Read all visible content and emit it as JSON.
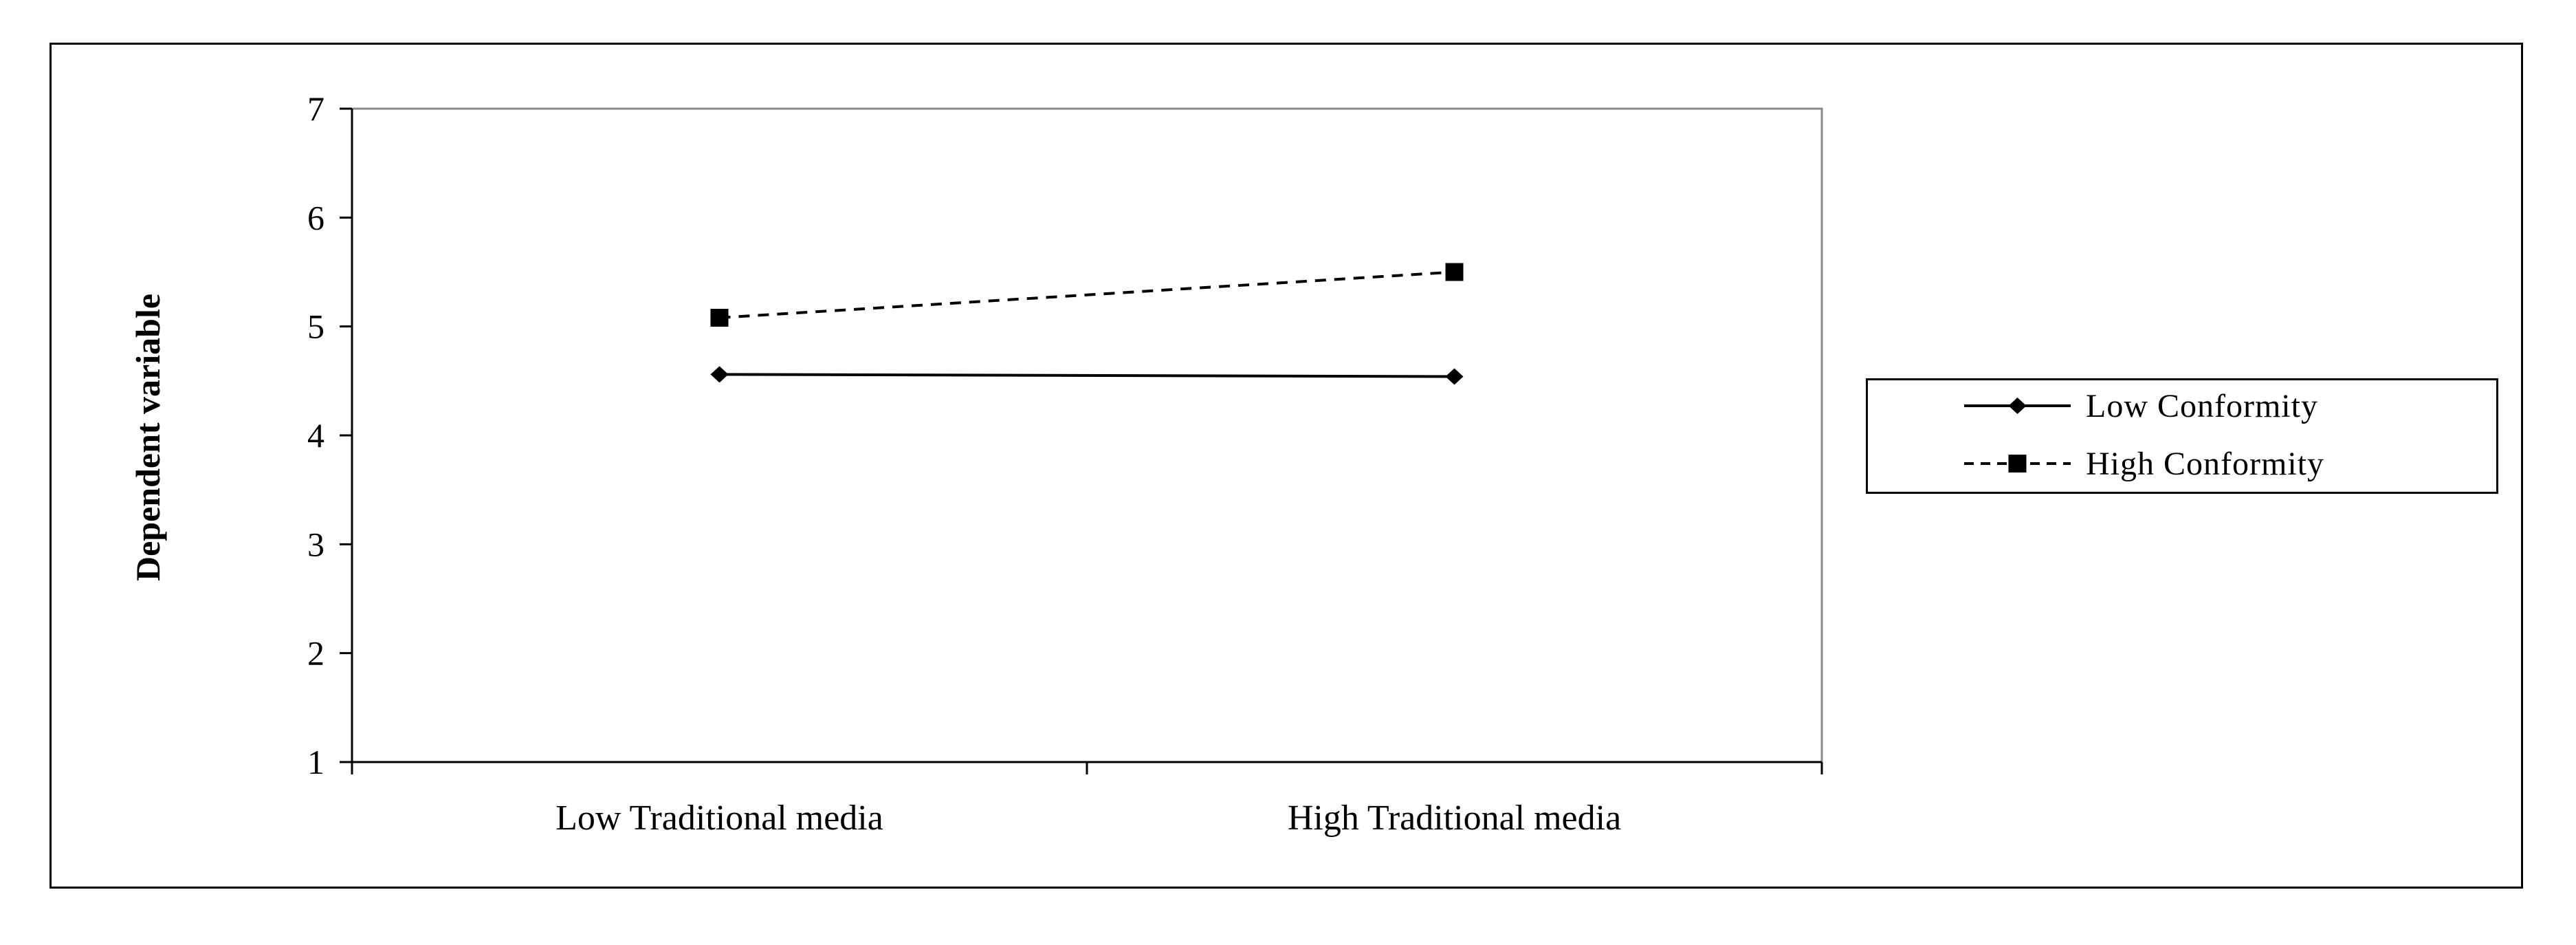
{
  "chart_data": {
    "type": "line",
    "categories": [
      "Low Traditional media",
      "High Traditional media"
    ],
    "series": [
      {
        "name": "Low Conformity",
        "values": [
          4.56,
          4.54
        ],
        "line_style": "solid",
        "marker": "diamond",
        "color": "#000000"
      },
      {
        "name": "High Conformity",
        "values": [
          5.08,
          5.5
        ],
        "line_style": "dashed",
        "marker": "square",
        "color": "#000000"
      }
    ],
    "title": "",
    "xlabel": "",
    "ylabel": "Dependent variable",
    "ylim": [
      1,
      7
    ],
    "yticks": [
      "1",
      "2",
      "3",
      "4",
      "5",
      "6",
      "7"
    ],
    "grid": false,
    "legend_position": "right"
  }
}
